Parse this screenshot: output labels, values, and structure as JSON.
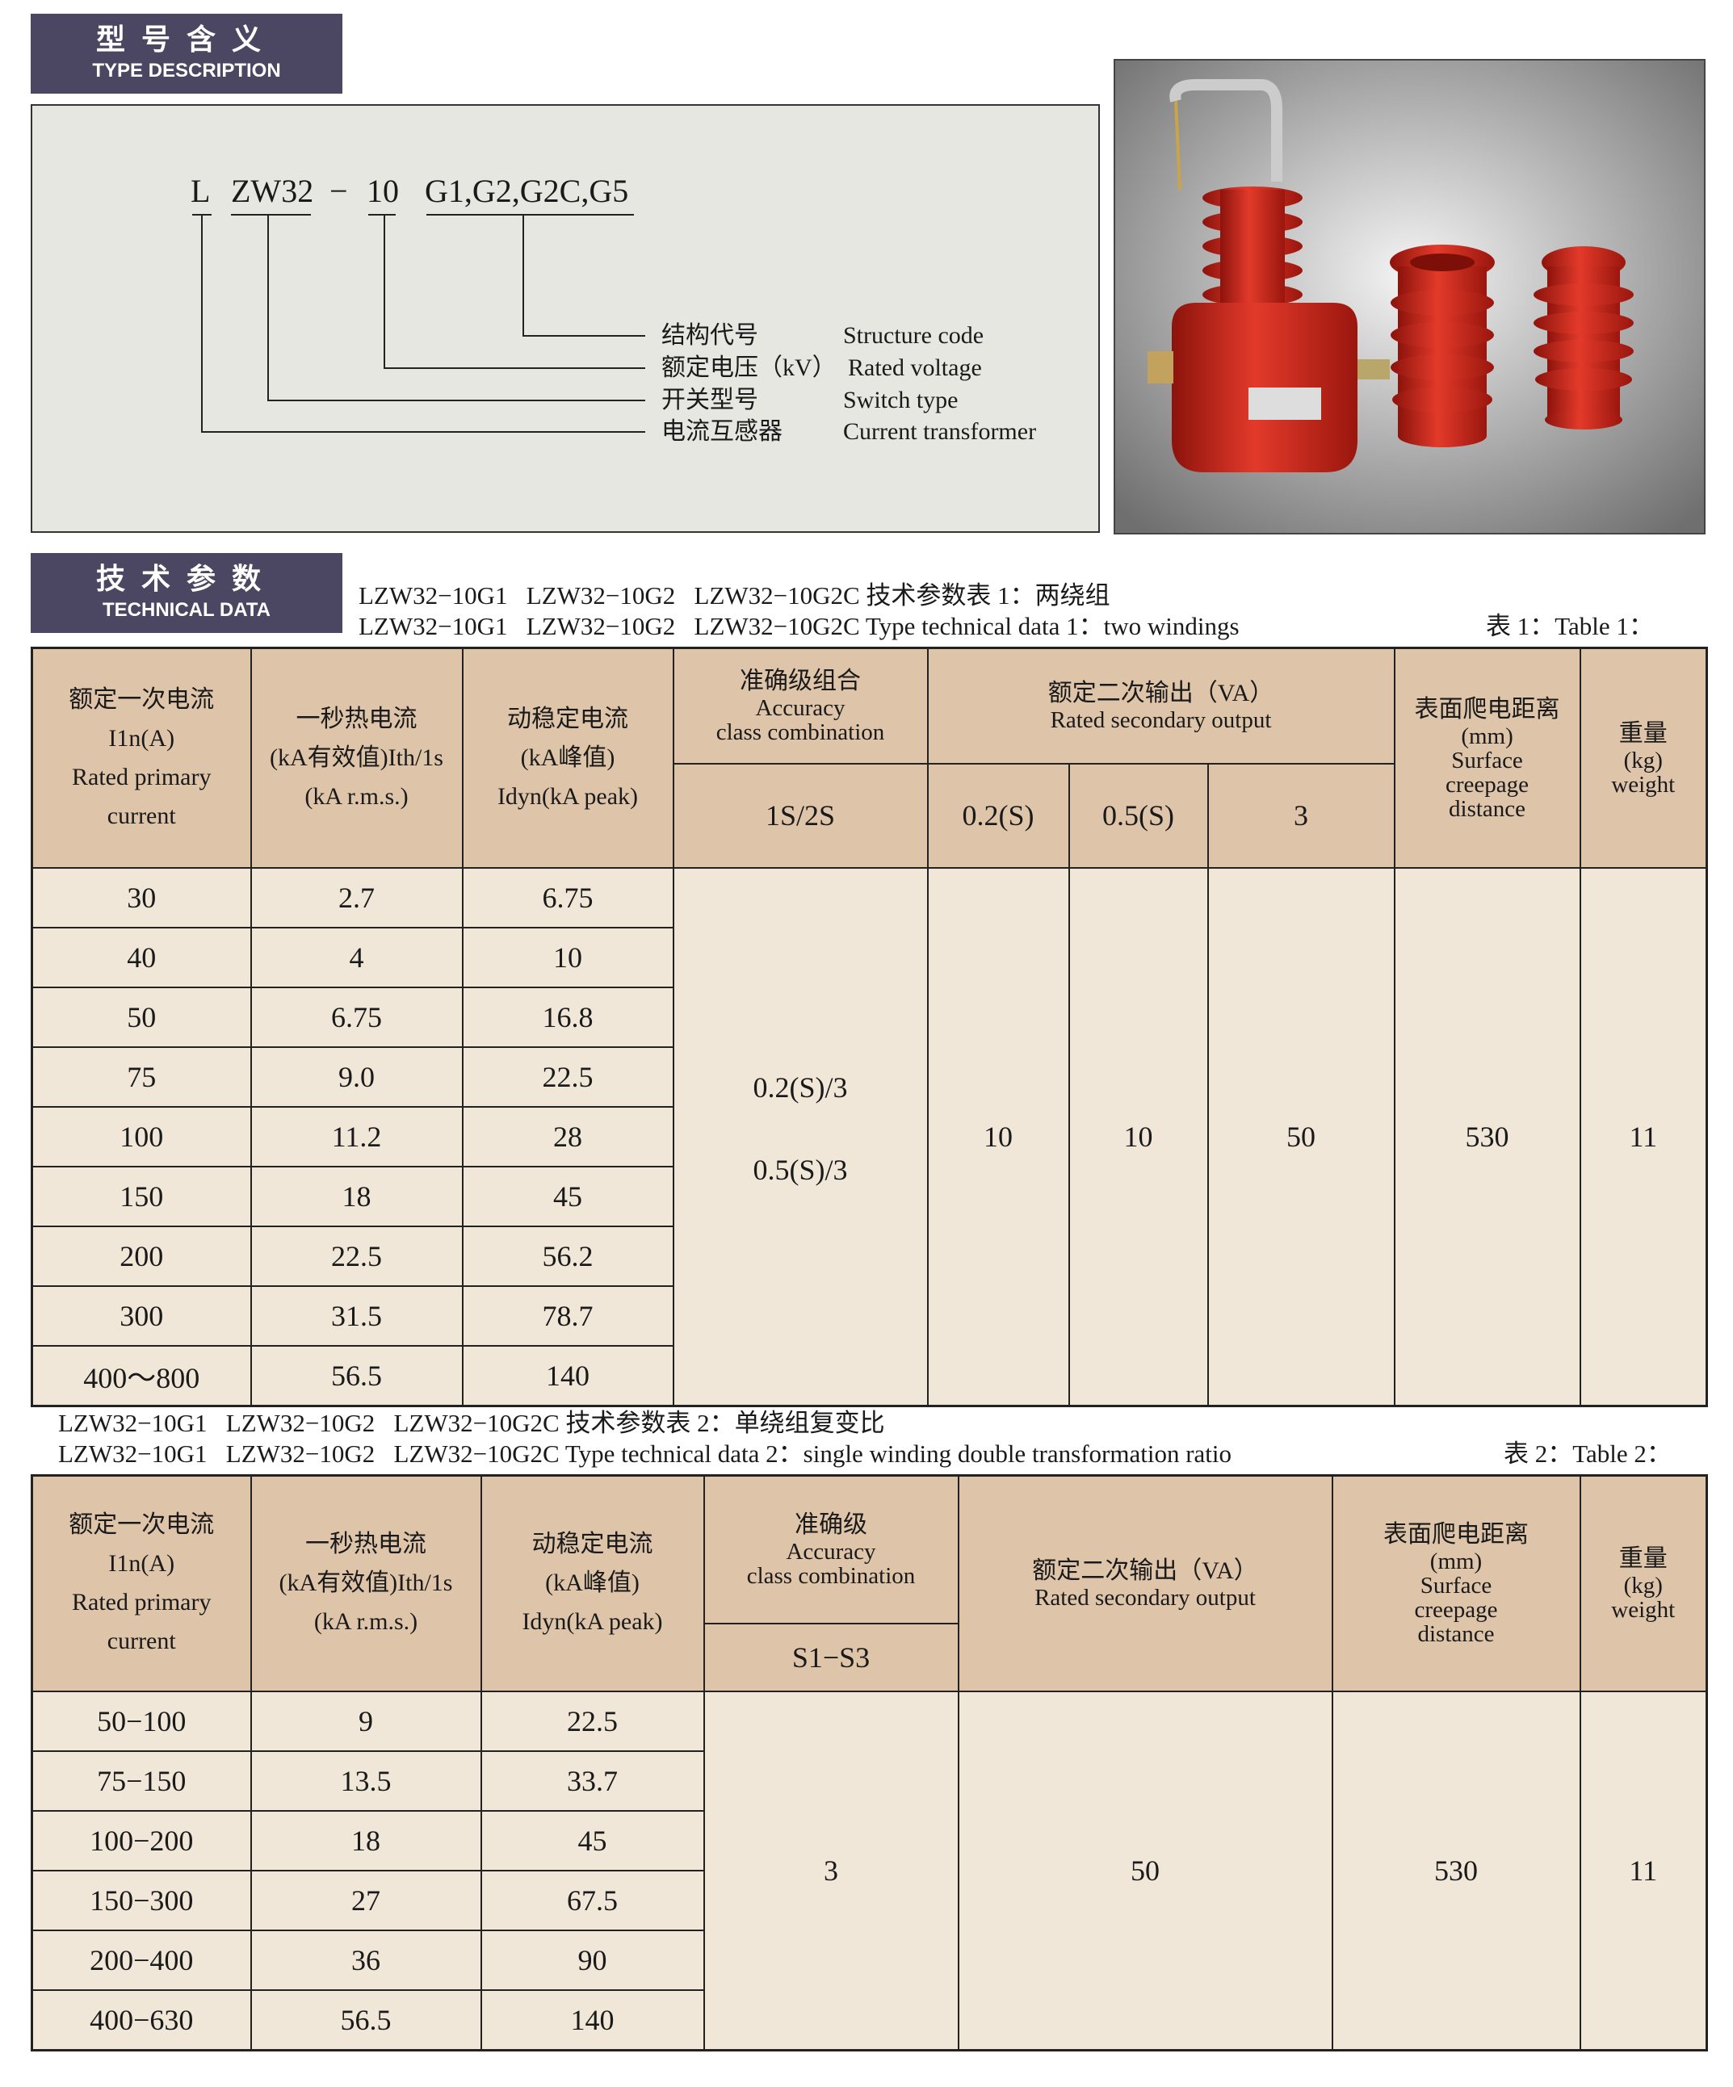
{
  "type_badge": {
    "cn": "型号含义",
    "en": "TYPE DESCRIPTION"
  },
  "diagram": {
    "model_parts": [
      "L",
      "ZW32",
      "−",
      "10",
      "G1,G2,G2C,G5"
    ],
    "labels": [
      {
        "cn": "结构代号",
        "en": "Structure code"
      },
      {
        "cn": "额定电压（kV）",
        "en": "Rated voltage"
      },
      {
        "cn": "开关型号",
        "en": "Switch type"
      },
      {
        "cn": "电流互感器",
        "en": "Current transformer"
      }
    ]
  },
  "tech_badge": {
    "cn": "技术参数",
    "en": "TECHNICAL DATA"
  },
  "table1": {
    "caption_cn": "LZW32−10G1   LZW32−10G2   LZW32−10G2C 技术参数表 1：两绕组",
    "caption_en": "LZW32−10G1   LZW32−10G2   LZW32−10G2C Type technical data 1：two windings",
    "table_label": "表 1：Table 1：",
    "headers": {
      "primary": [
        "额定一次电流",
        "I1n(A)",
        "Rated primary",
        "current"
      ],
      "thermal": [
        "一秒热电流",
        "(kA有效值)Ith/1s",
        "(kA r.m.s.)"
      ],
      "dynamic": [
        "动稳定电流",
        "(kA峰值)",
        "Idyn(kA peak)"
      ],
      "accuracy": [
        "准确级组合",
        "Accuracy",
        "class combination"
      ],
      "output": [
        "额定二次输出（VA）",
        "Rated secondary output"
      ],
      "creepage": [
        "表面爬电距离",
        "(mm)",
        "Surface",
        "creepage",
        "distance"
      ],
      "weight": [
        "重量",
        "(kg)",
        "weight"
      ],
      "sub": [
        "1S/2S",
        "0.2(S)",
        "0.5(S)",
        "3"
      ]
    },
    "rows": [
      [
        "30",
        "2.7",
        "6.75"
      ],
      [
        "40",
        "4",
        "10"
      ],
      [
        "50",
        "6.75",
        "16.8"
      ],
      [
        "75",
        "9.0",
        "22.5"
      ],
      [
        "100",
        "11.2",
        "28"
      ],
      [
        "150",
        "18",
        "45"
      ],
      [
        "200",
        "22.5",
        "56.2"
      ],
      [
        "300",
        "31.5",
        "78.7"
      ],
      [
        "400～800",
        "56.5",
        "140"
      ]
    ],
    "merged": {
      "accuracy": [
        "0.2(S)/3",
        "0.5(S)/3"
      ],
      "out_02": "10",
      "out_05": "10",
      "out_3": "50",
      "creepage": "530",
      "weight": "11"
    }
  },
  "table2": {
    "caption_cn": "LZW32−10G1   LZW32−10G2   LZW32−10G2C 技术参数表 2：单绕组复变比",
    "caption_en": "LZW32−10G1   LZW32−10G2   LZW32−10G2C Type technical data 2：single winding double transformation ratio",
    "table_label": "表 2：Table 2：",
    "headers": {
      "primary": [
        "额定一次电流",
        "I1n(A)",
        "Rated primary",
        "current"
      ],
      "thermal": [
        "一秒热电流",
        "(kA有效值)Ith/1s",
        "(kA r.m.s.)"
      ],
      "dynamic": [
        "动稳定电流",
        "(kA峰值)",
        "Idyn(kA peak)"
      ],
      "accuracy": [
        "准确级",
        "Accuracy",
        "class combination"
      ],
      "output": [
        "额定二次输出（VA）",
        "Rated secondary output"
      ],
      "creepage": [
        "表面爬电距离",
        "(mm)",
        "Surface",
        "creepage",
        "distance"
      ],
      "weight": [
        "重量",
        "(kg)",
        "weight"
      ],
      "sub": [
        "S1−S3"
      ]
    },
    "rows": [
      [
        "50−100",
        "9",
        "22.5"
      ],
      [
        "75−150",
        "13.5",
        "33.7"
      ],
      [
        "100−200",
        "18",
        "45"
      ],
      [
        "150−300",
        "27",
        "67.5"
      ],
      [
        "200−400",
        "36",
        "90"
      ],
      [
        "400−630",
        "56.5",
        "140"
      ]
    ],
    "merged": {
      "accuracy": "3",
      "output": "50",
      "creepage": "530",
      "weight": "11"
    }
  },
  "colors": {
    "badge": "#4b4762",
    "header_cell": "#dec4a9",
    "body_cell": "#f0e7d8",
    "diagram_bg": "#e7e7e1",
    "product_red": "#d5281c"
  }
}
